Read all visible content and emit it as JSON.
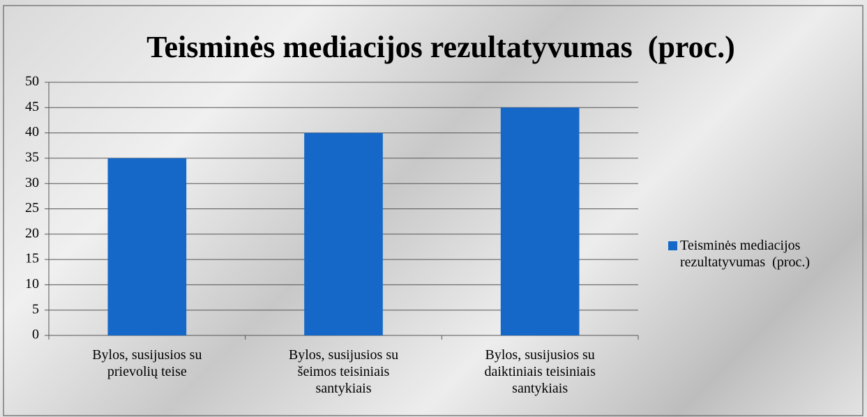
{
  "chart_data": {
    "type": "bar",
    "title": "Teisminės mediacijos rezultatyvumas  (proc.)",
    "categories": [
      "Bylos, susijusios su prievolių teise",
      "Bylos, susijusios su šeimos teisiniais santykiais",
      "Bylos, susijusios su daiktiniais teisiniais santykiais"
    ],
    "series": [
      {
        "name": "Teisminės mediacijos rezultatyvumas  (proc.)",
        "color": "#1668c8",
        "values": [
          35,
          40,
          45
        ]
      }
    ],
    "ylim": [
      0,
      50
    ],
    "yticks": [
      0,
      5,
      10,
      15,
      20,
      25,
      30,
      35,
      40,
      45,
      50
    ],
    "grid": true,
    "legend": "right"
  }
}
